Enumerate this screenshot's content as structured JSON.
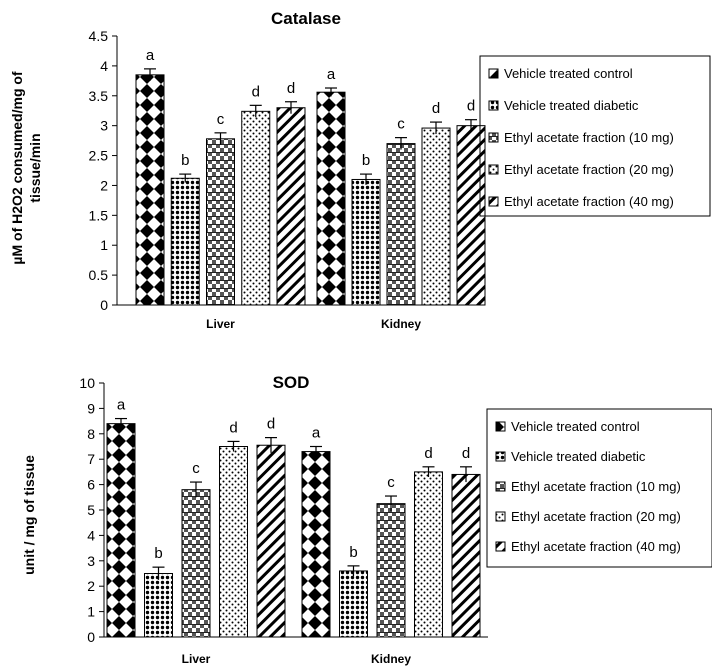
{
  "chart_data": [
    {
      "type": "bar",
      "title": "Catalase",
      "ylabel": [
        "µM of H2O2 consumed/mg of",
        "tissue/min"
      ],
      "xlabel": "",
      "ylim": [
        0,
        4.5
      ],
      "yticks": [
        "0",
        "0.5",
        "1",
        "1.5",
        "2",
        "2.5",
        "3",
        "3.5",
        "4",
        "4.5"
      ],
      "categories": [
        "Liver",
        "Kidney"
      ],
      "legend_position": "right",
      "series": [
        {
          "name": "Vehicle treated control",
          "values": [
            3.85,
            3.56
          ],
          "errors": [
            0.1,
            0.07
          ],
          "labels": [
            "a",
            "a"
          ]
        },
        {
          "name": "Vehicle treated diabetic",
          "values": [
            2.12,
            2.1
          ],
          "errors": [
            0.07,
            0.09
          ],
          "labels": [
            "b",
            "b"
          ]
        },
        {
          "name": "Ethyl acetate fraction (10 mg)",
          "values": [
            2.78,
            2.7
          ],
          "errors": [
            0.1,
            0.1
          ],
          "labels": [
            "c",
            "c"
          ]
        },
        {
          "name": "Ethyl acetate fraction (20 mg)",
          "values": [
            3.24,
            2.96
          ],
          "errors": [
            0.1,
            0.1
          ],
          "labels": [
            "d",
            "d"
          ]
        },
        {
          "name": "Ethyl acetate fraction (40 mg)",
          "values": [
            3.3,
            3.0
          ],
          "errors": [
            0.1,
            0.1
          ],
          "labels": [
            "d",
            "d"
          ]
        }
      ]
    },
    {
      "type": "bar",
      "title": "SOD",
      "ylabel": [
        "unit / mg of tissue"
      ],
      "xlabel": "",
      "ylim": [
        0,
        10
      ],
      "yticks": [
        "0",
        "1",
        "2",
        "3",
        "4",
        "5",
        "6",
        "7",
        "8",
        "9",
        "10"
      ],
      "categories": [
        "Liver",
        "Kidney"
      ],
      "legend_position": "right",
      "series": [
        {
          "name": "Vehicle treated control",
          "values": [
            8.4,
            7.3
          ],
          "errors": [
            0.2,
            0.2
          ],
          "labels": [
            "a",
            "a"
          ]
        },
        {
          "name": "Vehicle treated diabetic",
          "values": [
            2.5,
            2.6
          ],
          "errors": [
            0.25,
            0.2
          ],
          "labels": [
            "b",
            "b"
          ]
        },
        {
          "name": "Ethyl acetate fraction (10 mg)",
          "values": [
            5.8,
            5.25
          ],
          "errors": [
            0.3,
            0.3
          ],
          "labels": [
            "c",
            "c"
          ]
        },
        {
          "name": "Ethyl acetate fraction (20 mg)",
          "values": [
            7.5,
            6.5
          ],
          "errors": [
            0.2,
            0.2
          ],
          "labels": [
            "d",
            "d"
          ]
        },
        {
          "name": "Ethyl acetate fraction (40 mg)",
          "values": [
            7.55,
            6.4
          ],
          "errors": [
            0.3,
            0.3
          ],
          "labels": [
            "d",
            "d"
          ]
        }
      ]
    }
  ]
}
